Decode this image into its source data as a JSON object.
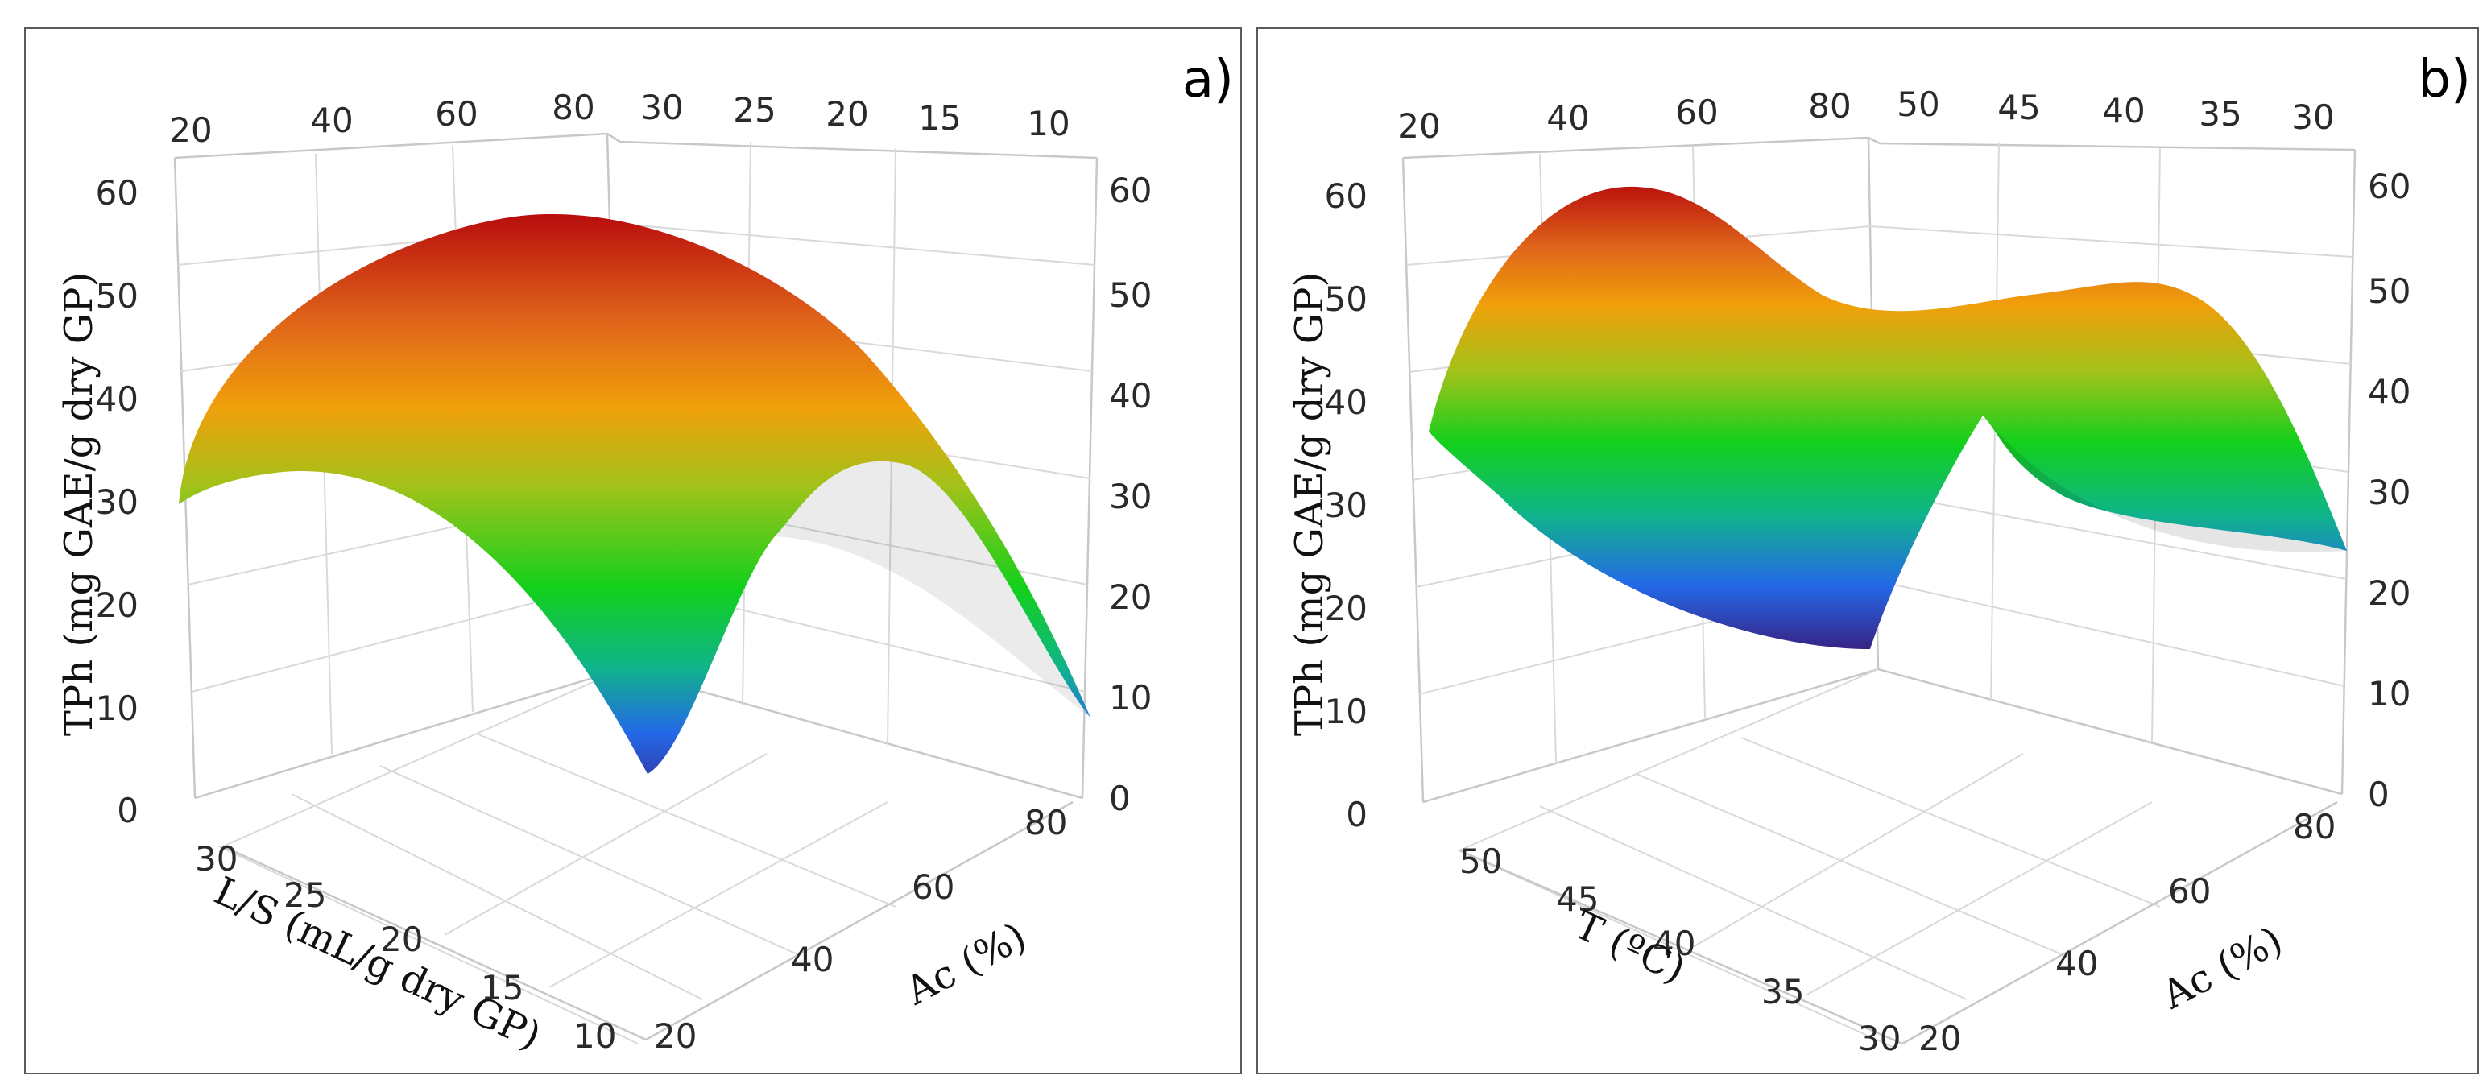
{
  "chart_data": [
    {
      "id": "a",
      "type": "surface",
      "panel_label": "a)",
      "z_axis_title": "TPh (mg GAE/g dry GP)",
      "x_axis_title": "L/S (mL/g dry GP)",
      "y_axis_title": "Ac (%)",
      "z_ticks": [
        "0",
        "10",
        "20",
        "30",
        "40",
        "50",
        "60"
      ],
      "x_ticks": [
        "30",
        "25",
        "20",
        "15",
        "10"
      ],
      "y_ticks": [
        "20",
        "40",
        "60",
        "80"
      ],
      "top_y_ticks": [
        "20",
        "40",
        "60",
        "80"
      ],
      "top_x_ticks": [
        "30",
        "25",
        "20",
        "15",
        "10"
      ],
      "zlim": [
        0,
        60
      ],
      "corner_values": {
        "ls30_ac20": 29,
        "ls10_ac20": 4,
        "ls10_ac90": 9,
        "ls30_ac90": 30
      },
      "max_value": 56
    },
    {
      "id": "b",
      "type": "surface",
      "panel_label": "b)",
      "z_axis_title": "TPh (mg GAE/g dry GP)",
      "x_axis_title": "T (ºC)",
      "y_axis_title": "Ac (%)",
      "z_ticks": [
        "0",
        "10",
        "20",
        "30",
        "40",
        "50",
        "60"
      ],
      "x_ticks": [
        "50",
        "45",
        "40",
        "35",
        "30"
      ],
      "y_ticks": [
        "20",
        "40",
        "60",
        "80"
      ],
      "top_y_ticks": [
        "20",
        "40",
        "60",
        "80"
      ],
      "top_x_ticks": [
        "50",
        "45",
        "40",
        "35",
        "30"
      ],
      "zlim": [
        0,
        60
      ],
      "corner_values": {
        "t50_ac20": 37,
        "t30_ac20": 16,
        "t30_ac90": 24,
        "t50_ac90": 47
      },
      "max_value": 58
    }
  ]
}
